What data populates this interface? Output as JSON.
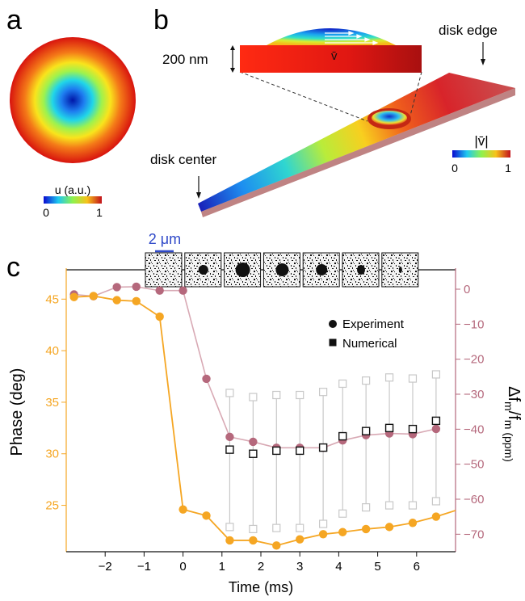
{
  "panels": {
    "a": {
      "letter": "a",
      "colorbar_label": "u (a.u.)",
      "colorbar_min": "0",
      "colorbar_max": "1"
    },
    "b": {
      "letter": "b",
      "thickness_label": "200 nm",
      "velocity_symbol": "v̄",
      "label_edge": "disk edge",
      "label_center": "disk center",
      "colorbar_label": "|v̄|",
      "colorbar_min": "0",
      "colorbar_max": "1"
    },
    "c": {
      "letter": "c",
      "scale_bar_label": "2 μm"
    }
  },
  "colors": {
    "phase": "#f5a623",
    "freq": "#b5687c",
    "freq_line": "#d8a9b4",
    "numerical": "#111111",
    "error_bar": "#c8c8c8",
    "scale_bar": "#2f49c8"
  },
  "chart_data": {
    "type": "line",
    "xlabel": "Time (ms)",
    "ylabel_left": "Phase (deg)",
    "ylabel_right": "Δf_m/f_m (ppm)",
    "xlim": [
      -3.0,
      7.0
    ],
    "ylim_left": [
      20.5,
      48.0
    ],
    "ylim_right": [
      -75.0,
      6.0
    ],
    "x_ticks": [
      -2,
      -1,
      0,
      1,
      2,
      3,
      4,
      5,
      6
    ],
    "y_ticks_left": [
      25,
      30,
      35,
      40,
      45
    ],
    "y_ticks_right": [
      0,
      -10,
      -20,
      -30,
      -40,
      -50,
      -60,
      -70
    ],
    "legend": {
      "position": "top-right",
      "entries": [
        {
          "label": "Experiment",
          "marker": "circle"
        },
        {
          "label": "Numerical",
          "marker": "square"
        }
      ]
    },
    "series": [
      {
        "axis": "left",
        "marker": "circle",
        "x": [
          -2.8,
          -2.3,
          -1.7,
          -1.2,
          -0.6,
          0.0,
          0.6,
          1.2,
          1.8,
          2.4,
          3.0,
          3.6,
          4.1,
          4.7,
          5.3,
          5.9,
          6.5,
          7.0
        ],
        "y": [
          45.2,
          45.3,
          44.9,
          44.8,
          43.3,
          24.6,
          24.0,
          21.6,
          21.6,
          21.1,
          21.7,
          22.2,
          22.4,
          22.7,
          22.9,
          23.3,
          23.9,
          24.5
        ]
      },
      {
        "axis": "right",
        "marker": "circle",
        "x": [
          -2.8,
          -2.3,
          -1.7,
          -1.2,
          -0.6,
          0.0,
          0.6,
          1.2,
          1.8,
          2.4,
          3.0,
          3.6,
          4.1,
          4.7,
          5.3,
          5.9,
          6.5
        ],
        "y": [
          -1.5,
          -2.0,
          0.6,
          0.7,
          -0.4,
          -0.4,
          -25.6,
          -42.2,
          -43.6,
          -45.3,
          -45.3,
          -45.3,
          -43.2,
          -41.7,
          -41.2,
          -41.4,
          -39.9
        ]
      },
      {
        "axis": "left",
        "marker": "square",
        "x": [
          1.2,
          1.8,
          2.4,
          3.0,
          3.6,
          4.1,
          4.7,
          5.3,
          5.9,
          6.5
        ],
        "y": [
          30.4,
          30.0,
          30.3,
          30.3,
          30.6,
          31.7,
          32.2,
          32.5,
          32.4,
          33.2
        ],
        "err_low": [
          22.9,
          22.7,
          22.8,
          22.8,
          23.2,
          24.2,
          24.8,
          25.0,
          25.0,
          25.4
        ],
        "err_high": [
          35.9,
          35.5,
          35.7,
          35.7,
          36.0,
          36.8,
          37.1,
          37.4,
          37.3,
          37.7
        ]
      }
    ],
    "snapshots": 7
  }
}
